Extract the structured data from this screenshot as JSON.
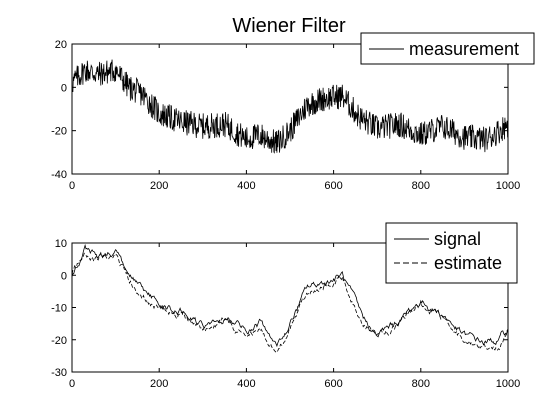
{
  "figure": {
    "title": "Wiener Filter"
  },
  "chart_data": [
    {
      "type": "line",
      "title": "Wiener Filter",
      "xlabel": "",
      "ylabel": "",
      "xlim": [
        0,
        1000
      ],
      "ylim": [
        -40,
        20
      ],
      "xticks": [
        0,
        200,
        400,
        600,
        800,
        1000
      ],
      "yticks": [
        20,
        0,
        -20,
        -40
      ],
      "xtick_labels": [
        "0",
        "200",
        "400",
        "600",
        "800",
        "1000"
      ],
      "ytick_labels": [
        "20",
        "0",
        "-20",
        "-40"
      ],
      "grid": false,
      "legend_position": "top-right",
      "legend": [
        "measurement"
      ],
      "series": [
        {
          "name": "measurement",
          "style": "solid",
          "color": "#000000",
          "noise": 6,
          "x": [
            0,
            30,
            60,
            100,
            130,
            160,
            200,
            250,
            300,
            350,
            400,
            430,
            470,
            500,
            540,
            580,
            620,
            660,
            700,
            750,
            800,
            850,
            900,
            950,
            980,
            1000
          ],
          "values": [
            2,
            8,
            6,
            8,
            0,
            -3,
            -12,
            -16,
            -18,
            -17,
            -24,
            -22,
            -26,
            -20,
            -8,
            -5,
            -4,
            -14,
            -19,
            -17,
            -22,
            -18,
            -23,
            -24,
            -20,
            -17
          ]
        }
      ]
    },
    {
      "type": "line",
      "title": "",
      "xlabel": "",
      "ylabel": "",
      "xlim": [
        0,
        1000
      ],
      "ylim": [
        -30,
        10
      ],
      "xticks": [
        0,
        200,
        400,
        600,
        800,
        1000
      ],
      "yticks": [
        10,
        0,
        -10,
        -20,
        -30
      ],
      "xtick_labels": [
        "0",
        "200",
        "400",
        "600",
        "800",
        "1000"
      ],
      "ytick_labels": [
        "10",
        "0",
        "-10",
        "-20",
        "-30"
      ],
      "grid": false,
      "legend_position": "top-right",
      "legend": [
        "signal",
        "estimate"
      ],
      "series": [
        {
          "name": "signal",
          "style": "solid",
          "color": "#000000",
          "x": [
            0,
            30,
            60,
            100,
            130,
            160,
            200,
            250,
            300,
            350,
            400,
            430,
            470,
            500,
            540,
            580,
            620,
            660,
            700,
            750,
            800,
            850,
            900,
            950,
            980,
            1000
          ],
          "values": [
            0,
            8,
            5,
            8,
            0,
            -5,
            -9,
            -11,
            -16,
            -14,
            -17,
            -15,
            -23,
            -15,
            -4,
            -2,
            0,
            -12,
            -19,
            -14,
            -8,
            -12,
            -19,
            -21,
            -20,
            -17
          ]
        },
        {
          "name": "estimate",
          "style": "dashed",
          "color": "#000000",
          "x": [
            0,
            30,
            60,
            100,
            130,
            160,
            200,
            250,
            300,
            350,
            400,
            430,
            470,
            500,
            540,
            580,
            620,
            660,
            700,
            750,
            800,
            850,
            900,
            950,
            980,
            1000
          ],
          "values": [
            1,
            7,
            5,
            7,
            -1,
            -6,
            -10,
            -12,
            -17,
            -15,
            -18,
            -16,
            -24,
            -16,
            -5,
            -3,
            -1,
            -13,
            -20,
            -15,
            -9,
            -13,
            -20,
            -22,
            -21,
            -18
          ]
        }
      ]
    }
  ]
}
